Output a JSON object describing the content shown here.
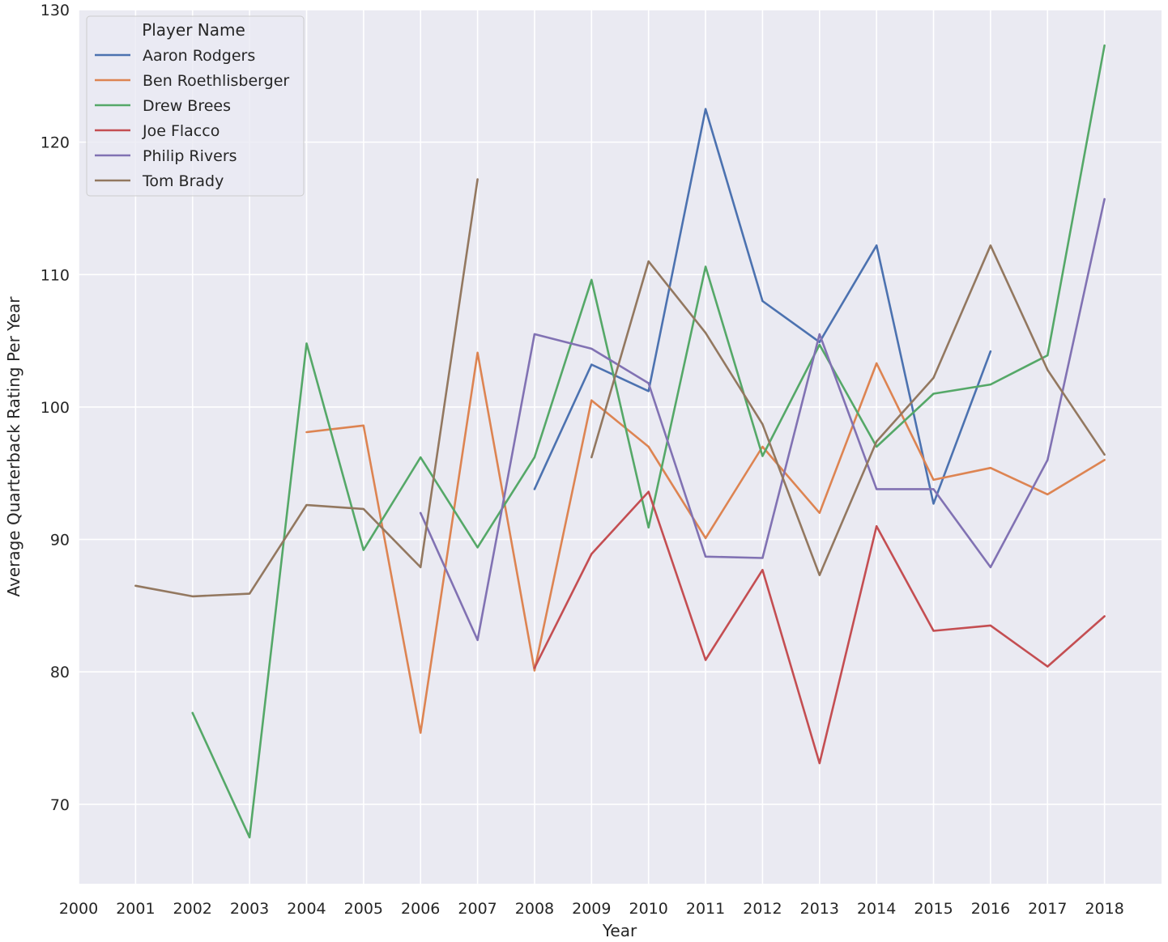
{
  "chart_data": {
    "type": "line",
    "title": "",
    "xlabel": "Year",
    "ylabel": "Average Quarterback Rating Per Year",
    "xlim": [
      2000,
      2019
    ],
    "ylim": [
      64,
      130
    ],
    "x_ticks": [
      2000,
      2001,
      2002,
      2003,
      2004,
      2005,
      2006,
      2007,
      2008,
      2009,
      2010,
      2011,
      2012,
      2013,
      2014,
      2015,
      2016,
      2017,
      2018
    ],
    "y_ticks": [
      70,
      80,
      90,
      100,
      110,
      120,
      130
    ],
    "grid": true,
    "background": "#EAEAF2",
    "legend": {
      "title": "Player Name",
      "placement": "top-left"
    },
    "series": [
      {
        "name": "Aaron Rodgers",
        "color": "#4C72B0",
        "points": [
          [
            2008,
            93.8
          ],
          [
            2009,
            103.2
          ],
          [
            2010,
            101.2
          ],
          [
            2011,
            122.5
          ],
          [
            2012,
            108.0
          ],
          [
            2013,
            104.9
          ],
          [
            2014,
            112.2
          ],
          [
            2015,
            92.7
          ],
          [
            2016,
            104.2
          ]
        ]
      },
      {
        "name": "Ben Roethlisberger",
        "color": "#DD8452",
        "points": [
          [
            2004,
            98.1
          ],
          [
            2005,
            98.6
          ],
          [
            2006,
            75.4
          ],
          [
            2007,
            104.1
          ],
          [
            2008,
            80.1
          ],
          [
            2009,
            100.5
          ],
          [
            2010,
            97.0
          ],
          [
            2011,
            90.1
          ],
          [
            2012,
            97.0
          ],
          [
            2013,
            92.0
          ],
          [
            2014,
            103.3
          ],
          [
            2015,
            94.5
          ],
          [
            2016,
            95.4
          ],
          [
            2017,
            93.4
          ],
          [
            2018,
            96.0
          ]
        ]
      },
      {
        "name": "Drew Brees",
        "color": "#55A868",
        "points": [
          [
            2002,
            76.9
          ],
          [
            2003,
            67.5
          ],
          [
            2004,
            104.8
          ],
          [
            2005,
            89.2
          ],
          [
            2006,
            96.2
          ],
          [
            2007,
            89.4
          ],
          [
            2008,
            96.2
          ],
          [
            2009,
            109.6
          ],
          [
            2010,
            90.9
          ],
          [
            2011,
            110.6
          ],
          [
            2012,
            96.3
          ],
          [
            2013,
            104.7
          ],
          [
            2014,
            97.0
          ],
          [
            2015,
            101.0
          ],
          [
            2016,
            101.7
          ],
          [
            2017,
            103.9
          ],
          [
            2018,
            127.3
          ]
        ]
      },
      {
        "name": "Joe Flacco",
        "color": "#C44E52",
        "points": [
          [
            2008,
            80.3
          ],
          [
            2009,
            88.9
          ],
          [
            2010,
            93.6
          ],
          [
            2011,
            80.9
          ],
          [
            2012,
            87.7
          ],
          [
            2013,
            73.1
          ],
          [
            2014,
            91.0
          ],
          [
            2015,
            83.1
          ],
          [
            2016,
            83.5
          ],
          [
            2017,
            80.4
          ],
          [
            2018,
            84.2
          ]
        ]
      },
      {
        "name": "Philip Rivers",
        "color": "#8172B3",
        "points": [
          [
            2006,
            92.0
          ],
          [
            2007,
            82.4
          ],
          [
            2008,
            105.5
          ],
          [
            2009,
            104.4
          ],
          [
            2010,
            101.8
          ],
          [
            2011,
            88.7
          ],
          [
            2012,
            88.6
          ],
          [
            2013,
            105.5
          ],
          [
            2014,
            93.8
          ],
          [
            2015,
            93.8
          ],
          [
            2016,
            87.9
          ],
          [
            2017,
            96.0
          ],
          [
            2018,
            115.7
          ]
        ]
      },
      {
        "name": "Tom Brady",
        "color": "#937860",
        "segments": [
          [
            [
              2001,
              86.5
            ],
            [
              2002,
              85.7
            ],
            [
              2003,
              85.9
            ],
            [
              2004,
              92.6
            ],
            [
              2005,
              92.3
            ],
            [
              2006,
              87.9
            ],
            [
              2007,
              117.2
            ]
          ],
          [
            [
              2009,
              96.2
            ],
            [
              2010,
              111.0
            ],
            [
              2011,
              105.6
            ],
            [
              2012,
              98.7
            ],
            [
              2013,
              87.3
            ],
            [
              2014,
              97.4
            ],
            [
              2015,
              102.2
            ],
            [
              2016,
              112.2
            ],
            [
              2017,
              102.8
            ],
            [
              2018,
              96.4
            ]
          ]
        ]
      }
    ]
  }
}
